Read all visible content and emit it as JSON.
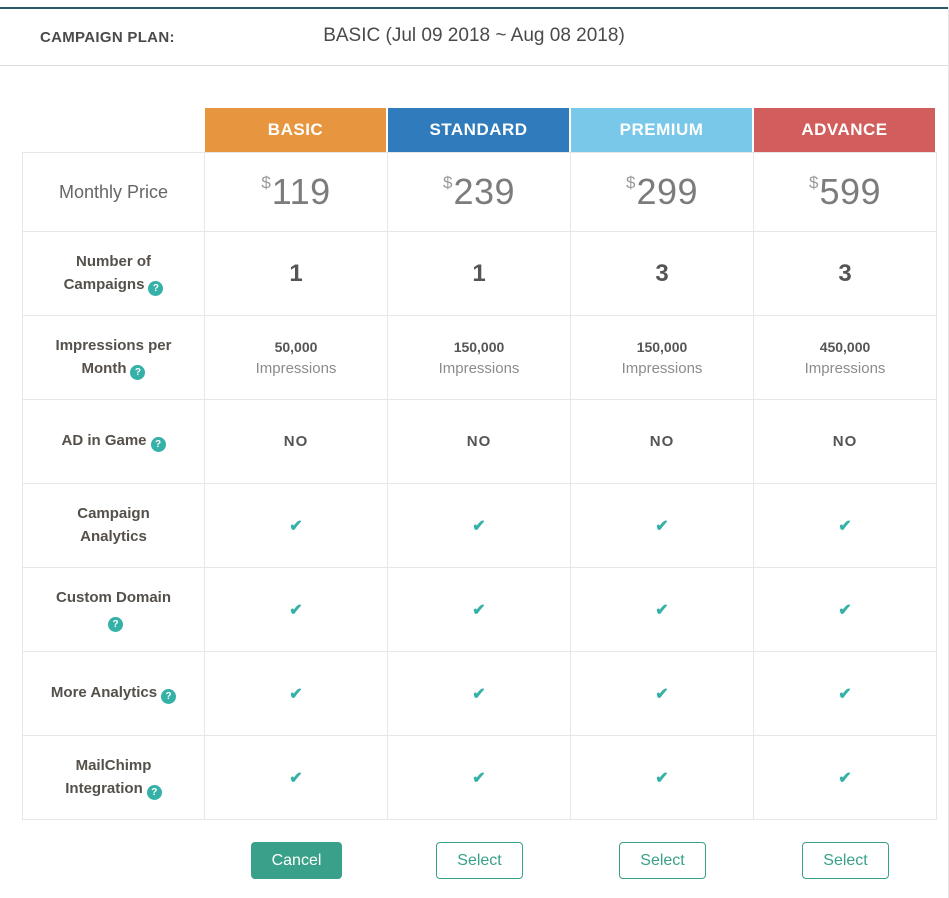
{
  "header": {
    "label": "CAMPAIGN PLAN:",
    "value": "BASIC (Jul 09 2018 ~ Aug 08 2018)"
  },
  "icons": {
    "check": "✔",
    "help": "?"
  },
  "features": {
    "price": "Monthly Price",
    "campaigns": "Number of Campaigns",
    "impressions": "Impressions per Month",
    "ad": "AD in Game",
    "analytics": "Campaign Analytics",
    "domain": "Custom Domain",
    "more": "More Analytics",
    "mailchimp": "MailChimp Integration"
  },
  "plans": [
    {
      "name": "BASIC",
      "currency": "$",
      "price": "119",
      "campaigns": "1",
      "impressions_value": "50,000",
      "impressions_unit": "Impressions",
      "ad_in_game": "NO",
      "action": "Cancel"
    },
    {
      "name": "STANDARD",
      "currency": "$",
      "price": "239",
      "campaigns": "1",
      "impressions_value": "150,000",
      "impressions_unit": "Impressions",
      "ad_in_game": "NO",
      "action": "Select"
    },
    {
      "name": "PREMIUM",
      "currency": "$",
      "price": "299",
      "campaigns": "3",
      "impressions_value": "150,000",
      "impressions_unit": "Impressions",
      "ad_in_game": "NO",
      "action": "Select"
    },
    {
      "name": "ADVANCE",
      "currency": "$",
      "price": "599",
      "campaigns": "3",
      "impressions_value": "450,000",
      "impressions_unit": "Impressions",
      "ad_in_game": "NO",
      "action": "Select"
    }
  ],
  "colors": {
    "basic": "#e8953f",
    "standard": "#2f7bbb",
    "premium": "#79c7e9",
    "advance": "#d15e5c",
    "accent_teal": "#35b1a7",
    "button_teal": "#39a189"
  }
}
